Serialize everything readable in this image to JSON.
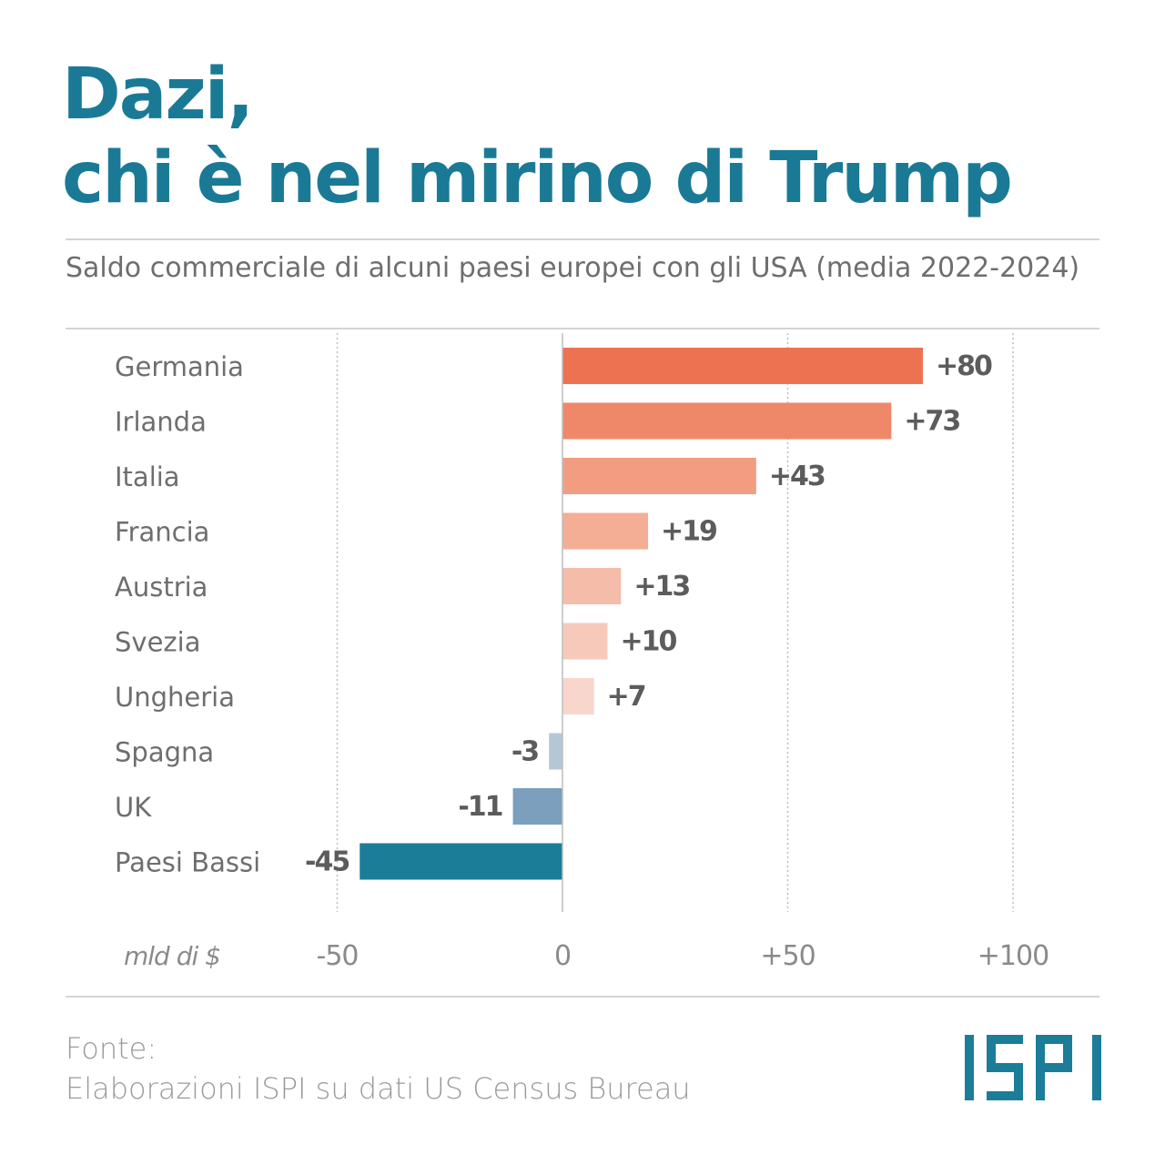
{
  "title": {
    "line1": "Dazi,",
    "line2": "chi è nel mirino di Trump"
  },
  "subtitle": "Saldo commerciale di alcuni paesi europei con gli USA (media 2022-2024)",
  "source": {
    "label": "Fonte:",
    "text": "Elaborazioni ISPI su dati US Census Bureau"
  },
  "logo_text": "ISPI",
  "colors": {
    "title": "#1a7a96",
    "positive": [
      "#ec7252",
      "#ef8869",
      "#f29d82",
      "#f4ae96",
      "#f6bcaa",
      "#f7c9ba",
      "#f9d6cc"
    ],
    "negative": [
      "#b5c7d7",
      "#7b9fbc",
      "#1b7d98"
    ],
    "value_label": "#5c5c5c",
    "grid": "#bdbdbd"
  },
  "chart_data": {
    "type": "bar",
    "orientation": "horizontal",
    "categories": [
      "Germania",
      "Irlanda",
      "Italia",
      "Francia",
      "Austria",
      "Svezia",
      "Ungheria",
      "Spagna",
      "UK",
      "Paesi Bassi"
    ],
    "values": [
      80,
      73,
      43,
      19,
      13,
      10,
      7,
      -3,
      -11,
      -45
    ],
    "value_labels": [
      "+80",
      "+73",
      "+43",
      "+19",
      "+13",
      "+10",
      "+7",
      "-3",
      "-11",
      "-45"
    ],
    "xlim": [
      -50,
      100
    ],
    "xticks": [
      -50,
      0,
      50,
      100
    ],
    "xtick_labels": [
      "-50",
      "0",
      "+50",
      "+100"
    ],
    "unit_label": "mld di $",
    "grid": true
  }
}
